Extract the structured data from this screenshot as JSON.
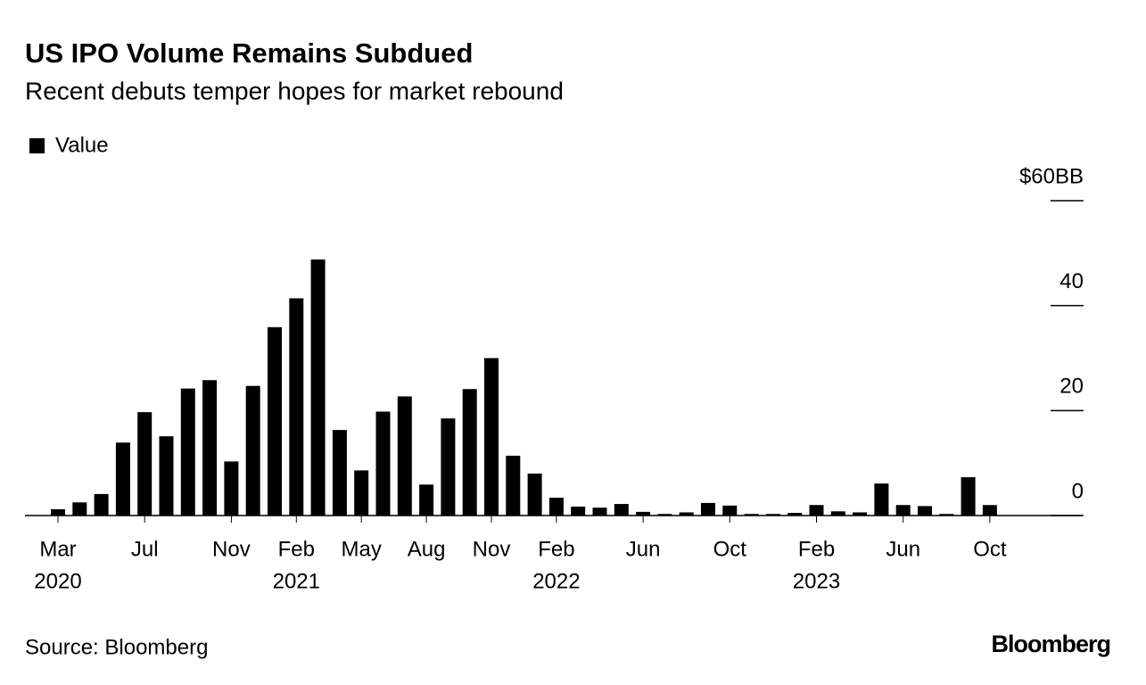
{
  "chart_data": {
    "type": "bar",
    "title": "US IPO Volume Remains Subdued",
    "subtitle": "Recent debuts temper hopes for market rebound",
    "categories": [
      "Mar",
      null,
      null,
      null,
      "Jul",
      null,
      null,
      null,
      "Nov",
      null,
      null,
      "Feb",
      null,
      null,
      "May",
      null,
      null,
      "Aug",
      null,
      null,
      "Nov",
      null,
      null,
      "Feb",
      null,
      null,
      null,
      "Jun",
      null,
      null,
      null,
      "Oct",
      null,
      null,
      null,
      "Feb",
      null,
      null,
      null,
      "Jun",
      null,
      null,
      null,
      "Oct"
    ],
    "category_years": [
      "2020",
      null,
      null,
      null,
      null,
      null,
      null,
      null,
      null,
      null,
      null,
      "2021",
      null,
      null,
      null,
      null,
      null,
      null,
      null,
      null,
      null,
      null,
      null,
      "2022",
      null,
      null,
      null,
      null,
      null,
      null,
      null,
      null,
      null,
      null,
      null,
      "2023",
      null,
      null,
      null,
      null,
      null,
      null,
      null,
      null
    ],
    "series": [
      {
        "name": "Value",
        "color": "#000000",
        "values": [
          1.2,
          2.5,
          4.1,
          13.9,
          19.7,
          15.1,
          24.2,
          25.8,
          10.3,
          24.7,
          35.9,
          41.4,
          48.8,
          16.3,
          8.6,
          19.8,
          22.7,
          5.9,
          18.5,
          24.1,
          30.0,
          11.4,
          8.0,
          3.4,
          1.7,
          1.5,
          2.2,
          0.7,
          0.3,
          0.6,
          2.4,
          1.9,
          0.3,
          0.3,
          0.5,
          2.0,
          0.8,
          0.6,
          6.1,
          2.0,
          1.8,
          0.3,
          7.3,
          2.0
        ]
      }
    ],
    "ylim": [
      0,
      60
    ],
    "yticks": [
      0,
      20,
      40,
      {
        "value": 60,
        "label": "$60BB"
      }
    ],
    "source": "Source: Bloomberg",
    "brand": "Bloomberg"
  }
}
